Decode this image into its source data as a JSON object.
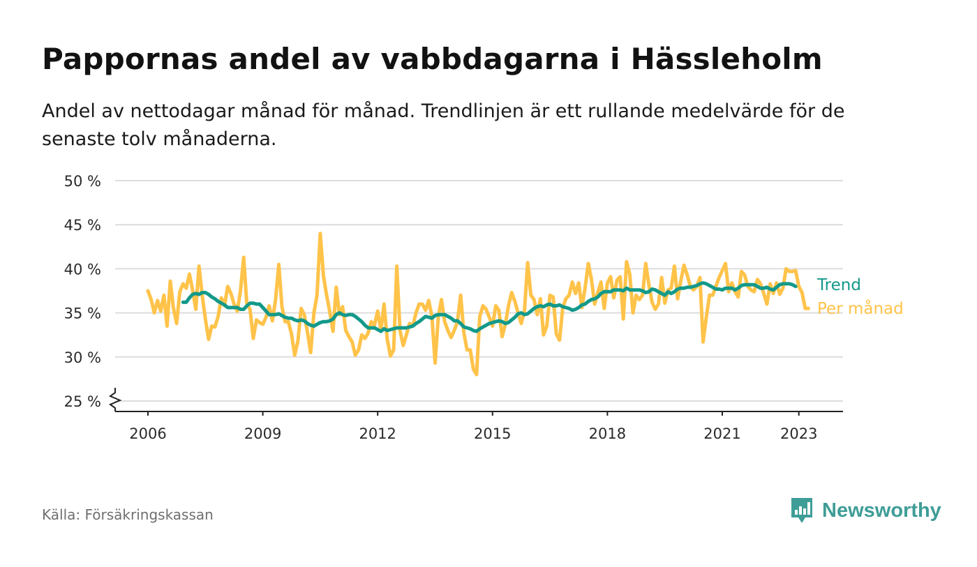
{
  "title": "Pappornas andel av vabbdagarna i Hässleholm",
  "subtitle": "Andel av nettodagar månad för månad. Trendlinjen är ett rullande medelvärde för de senaste tolv månaderna.",
  "source": "Källa: Försäkringskassan",
  "brand": "Newsworthy",
  "colors": {
    "trend": "#13998a",
    "monthly": "#ffc34a",
    "grid": "#dcdcdc",
    "axis": "#222222",
    "brand": "#3f9d97"
  },
  "chart_data": {
    "type": "line",
    "x_start": "2006-01",
    "x_end": "2023-05",
    "x_ticks": [
      "2006",
      "2009",
      "2012",
      "2015",
      "2018",
      "2021",
      "2023"
    ],
    "y_ticks": [
      25,
      30,
      35,
      40,
      45,
      50
    ],
    "y_tick_labels": [
      "25 %",
      "30 %",
      "35 %",
      "40 %",
      "45 %",
      "50 %"
    ],
    "ylim": [
      25,
      50
    ],
    "axis_break": true,
    "grid": true,
    "series": [
      {
        "name": "Per månad",
        "start": "2006-01",
        "values": [
          37.5,
          36.5,
          35.0,
          36.4,
          35.2,
          37.0,
          33.5,
          38.6,
          35.5,
          33.8,
          37.4,
          38.3,
          37.8,
          39.4,
          37.6,
          35.4,
          40.3,
          37.0,
          34.3,
          32.0,
          33.5,
          33.4,
          34.6,
          36.7,
          35.8,
          38.0,
          37.2,
          36.0,
          35.2,
          37.5,
          41.3,
          36.0,
          35.4,
          32.1,
          34.2,
          33.9,
          33.7,
          34.5,
          35.8,
          34.1,
          36.5,
          40.5,
          35.7,
          34.0,
          34.0,
          32.6,
          30.2,
          31.8,
          35.5,
          34.8,
          32.8,
          30.5,
          35.0,
          37.0,
          44.0,
          39.2,
          37.0,
          35.1,
          32.9,
          37.9,
          34.8,
          35.7,
          33.0,
          32.3,
          31.7,
          30.2,
          30.8,
          32.5,
          32.1,
          32.7,
          34.0,
          33.6,
          35.2,
          33.0,
          36.0,
          32.0,
          30.1,
          30.8,
          40.3,
          33.0,
          31.3,
          32.5,
          33.8,
          33.5,
          35.0,
          36.0,
          36.0,
          35.3,
          36.4,
          34.6,
          29.3,
          34.6,
          36.5,
          34.0,
          33.0,
          32.2,
          33.0,
          34.0,
          37.0,
          32.8,
          30.8,
          30.8,
          28.6,
          28.0,
          34.6,
          35.8,
          35.4,
          34.5,
          33.5,
          35.8,
          35.3,
          32.3,
          33.7,
          35.8,
          37.3,
          36.3,
          35.0,
          33.8,
          35.2,
          40.7,
          37.0,
          36.5,
          34.8,
          36.6,
          32.5,
          33.5,
          37.0,
          36.8,
          32.6,
          31.9,
          35.6,
          36.6,
          37.0,
          38.5,
          37.2,
          38.4,
          35.6,
          37.8,
          40.6,
          38.8,
          36.0,
          37.3,
          38.5,
          35.5,
          38.4,
          39.1,
          36.7,
          38.7,
          39.1,
          34.3,
          40.8,
          39.4,
          35.0,
          37.0,
          36.5,
          37.0,
          40.6,
          38.2,
          36.2,
          35.4,
          36.0,
          39.0,
          36.1,
          37.6,
          37.8,
          40.3,
          36.6,
          38.6,
          40.4,
          39.3,
          38.0,
          37.6,
          38.0,
          39.0,
          31.7,
          34.5,
          37.0,
          37.0,
          38.0,
          39.0,
          39.8,
          40.6,
          37.4,
          38.4,
          37.4,
          36.8,
          39.7,
          39.3,
          38.0,
          37.6,
          37.4,
          38.8,
          38.3,
          37.2,
          36.0,
          38.3,
          37.2,
          38.4,
          37.1,
          37.8,
          40.0,
          39.7,
          39.7,
          39.8,
          38.0,
          37.3,
          35.5,
          35.5
        ]
      },
      {
        "name": "Trend",
        "start": "2006-12",
        "values": [
          36.2,
          36.2,
          36.7,
          37.1,
          37.2,
          37.1,
          37.3,
          37.3,
          37.1,
          36.8,
          36.6,
          36.3,
          36.1,
          35.9,
          35.6,
          35.6,
          35.6,
          35.6,
          35.4,
          35.4,
          35.8,
          36.1,
          36.1,
          36.0,
          36.0,
          35.6,
          35.2,
          34.8,
          34.8,
          34.8,
          34.9,
          34.7,
          34.5,
          34.4,
          34.4,
          34.2,
          34.1,
          34.2,
          34.1,
          33.8,
          33.6,
          33.5,
          33.7,
          33.9,
          34.0,
          34.0,
          34.1,
          34.3,
          34.8,
          35.0,
          34.8,
          34.7,
          34.8,
          34.8,
          34.6,
          34.3,
          34.0,
          33.6,
          33.3,
          33.3,
          33.3,
          33.1,
          32.9,
          33.2,
          33.0,
          33.1,
          33.2,
          33.3,
          33.3,
          33.3,
          33.3,
          33.4,
          33.5,
          33.8,
          34.0,
          34.3,
          34.6,
          34.5,
          34.4,
          34.7,
          34.8,
          34.8,
          34.8,
          34.6,
          34.4,
          34.1,
          34.1,
          33.8,
          33.4,
          33.3,
          33.2,
          33.0,
          32.9,
          33.2,
          33.4,
          33.6,
          33.8,
          33.9,
          34.0,
          34.1,
          34.0,
          33.8,
          33.9,
          34.2,
          34.5,
          34.9,
          35.0,
          34.8,
          34.9,
          35.2,
          35.5,
          35.7,
          35.8,
          35.7,
          35.9,
          36.0,
          35.8,
          35.8,
          35.9,
          35.7,
          35.6,
          35.5,
          35.3,
          35.4,
          35.6,
          35.9,
          36.0,
          36.3,
          36.5,
          36.6,
          36.8,
          37.2,
          37.4,
          37.4,
          37.4,
          37.6,
          37.6,
          37.6,
          37.5,
          37.8,
          37.6,
          37.6,
          37.6,
          37.6,
          37.5,
          37.3,
          37.4,
          37.7,
          37.6,
          37.4,
          37.2,
          37.0,
          37.4,
          37.2,
          37.4,
          37.7,
          37.8,
          37.8,
          37.9,
          37.9,
          38.0,
          38.1,
          38.3,
          38.4,
          38.3,
          38.1,
          37.9,
          37.7,
          37.7,
          37.6,
          37.8,
          37.8,
          37.8,
          37.6,
          37.8,
          38.1,
          38.2,
          38.2,
          38.2,
          38.2,
          38.0,
          37.8,
          37.8,
          37.9,
          37.7,
          37.6,
          37.9,
          38.2,
          38.3,
          38.3,
          38.3,
          38.2,
          38.0
        ]
      }
    ]
  }
}
